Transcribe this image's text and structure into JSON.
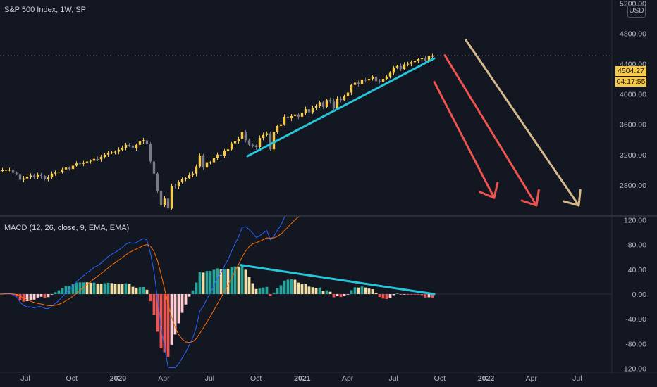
{
  "chart_data": [
    {
      "type": "candlestick",
      "title": "S&P 500 Index, 1W, SP",
      "currency": "USD",
      "last_price": "4504.27",
      "countdown": "04:17:55",
      "y_ticks": [
        "5200.00",
        "4800.00",
        "4400.00",
        "4000.00",
        "3600.00",
        "3200.00",
        "2800.00"
      ],
      "ylim": [
        2400,
        5240
      ],
      "colors": {
        "up": "#f7c948",
        "down": "#787b86",
        "trendline": "#26c6da"
      },
      "weekly_close": [
        2990,
        2995,
        3000,
        3002,
        2960,
        2945,
        2870,
        2885,
        2910,
        2925,
        2900,
        2940,
        2920,
        2880,
        2900,
        2950,
        2965,
        2975,
        3005,
        3030,
        3010,
        3055,
        3085,
        3080,
        3095,
        3110,
        3120,
        3145,
        3140,
        3170,
        3200,
        3225,
        3230,
        3240,
        3265,
        3290,
        3330,
        3320,
        3290,
        3330,
        3375,
        3390,
        3340,
        3110,
        2950,
        2720,
        2530,
        2620,
        2490,
        2790,
        2780,
        2840,
        2880,
        2890,
        2930,
        2950,
        3045,
        3190,
        3030,
        3100,
        3100,
        3155,
        3200,
        3180,
        3250,
        3270,
        3350,
        3380,
        3410,
        3500,
        3390,
        3330,
        3320,
        3300,
        3420,
        3460,
        3480,
        3270,
        3500,
        3580,
        3600,
        3700,
        3680,
        3710,
        3730,
        3700,
        3750,
        3800,
        3760,
        3820,
        3840,
        3890,
        3830,
        3920,
        3900,
        3810,
        3940,
        3920,
        3970,
        4020,
        4120,
        4150,
        4130,
        4190,
        4180,
        4200,
        4230,
        4170,
        4160,
        4200,
        4230,
        4280,
        4350,
        4370,
        4330,
        4390,
        4400,
        4420,
        4440,
        4460,
        4470,
        4440,
        4500,
        4504
      ],
      "annotations": [
        {
          "type": "trendline",
          "color": "#26c6da",
          "from": [
            "2020-09-14",
            3180
          ],
          "to": [
            "2021-09-20",
            4470
          ]
        },
        {
          "type": "arrow",
          "color": "#ef5350",
          "from": [
            "2021-09-20",
            4160
          ],
          "to": [
            "2022-01-17",
            2630
          ]
        },
        {
          "type": "arrow",
          "color": "#ef5350",
          "from": [
            "2021-10-11",
            4510
          ],
          "to": [
            "2022-04-11",
            2530
          ]
        },
        {
          "type": "arrow",
          "color": "#d7b98c",
          "from": [
            "2021-11-22",
            4710
          ],
          "to": [
            "2022-07-04",
            2530
          ]
        }
      ]
    },
    {
      "type": "histogram+line",
      "title": "MACD (12, 26, close, 9, EMA, EMA)",
      "y_ticks": [
        "120.00",
        "80.00",
        "40.00",
        "0.00",
        "-40.00",
        "-80.00",
        "-120.00"
      ],
      "ylim": [
        -125,
        125
      ],
      "colors": {
        "macd": "#2962ff",
        "signal": "#ff6d00",
        "hist_up_rising": "#26a69a",
        "hist_up_falling": "#f0e0a8",
        "hist_down": "#ef5350"
      },
      "annotations": [
        {
          "type": "trendline",
          "color": "#26c6da",
          "from": [
            "2020-08-31",
            47
          ],
          "to": [
            "2021-09-20",
            0
          ]
        }
      ]
    }
  ],
  "x_axis": {
    "start": "2019-05-06",
    "labels": [
      "Jul",
      "Oct",
      "2020",
      "Apr",
      "Jul",
      "Oct",
      "2021",
      "Apr",
      "Jul",
      "Oct",
      "2022",
      "Apr",
      "Jul"
    ],
    "dates": [
      "2019-07-01",
      "2019-10-01",
      "2020-01-01",
      "2020-04-01",
      "2020-07-01",
      "2020-10-01",
      "2021-01-01",
      "2021-04-01",
      "2021-07-01",
      "2021-10-01",
      "2022-01-01",
      "2022-04-01",
      "2022-07-01"
    ]
  }
}
